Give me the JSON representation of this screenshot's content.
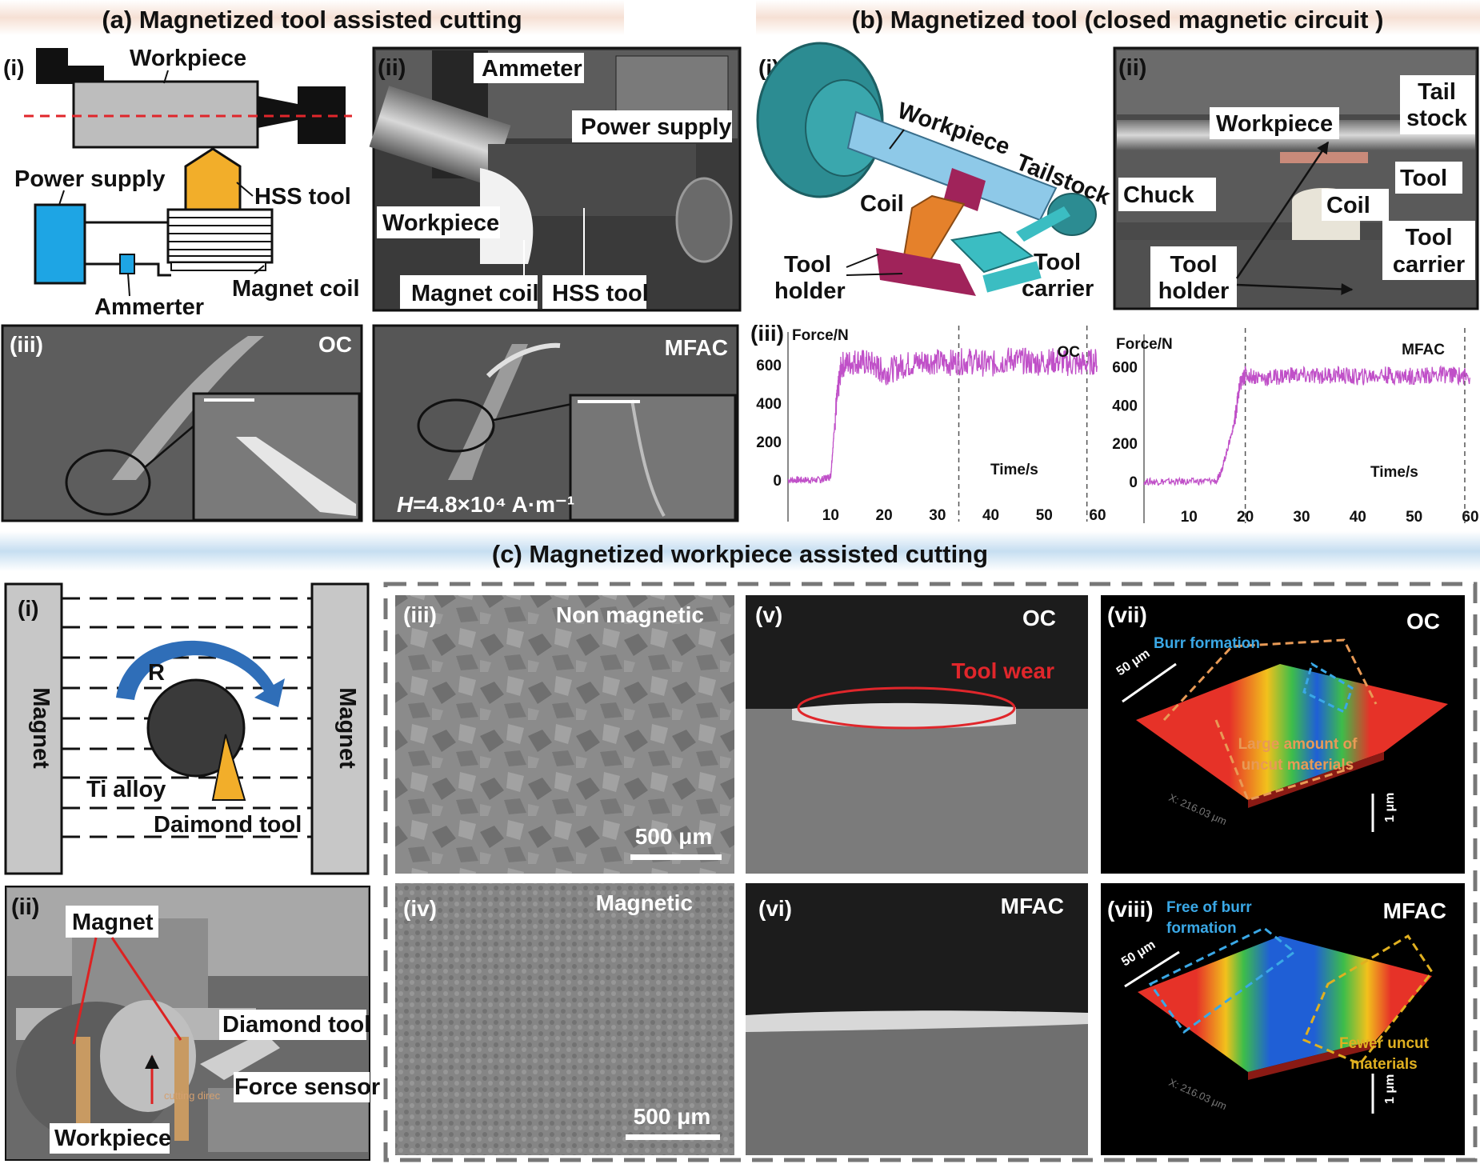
{
  "colors": {
    "band_a": "#f6e4dc",
    "band_c": "#cfe3f3",
    "pink_trace": "#c050c8",
    "hss_tool": "#f2ae2a",
    "power_supply": "#1ea5e4",
    "workpiece_gray": "#bdbdbd",
    "dashed_red": "#e0262b",
    "workpiece_blue": "#8ec9e8",
    "coil_orange": "#e5812b",
    "holder_magenta": "#a0235a",
    "carrier_teal": "#3bbdc2",
    "chuck_teal": "#2c8c92"
  },
  "panel_a": {
    "title": "(a) Magnetized tool assisted cutting",
    "i": {
      "tag": "(i)",
      "workpiece": "Workpiece",
      "power_supply": "Power supply",
      "hss_tool": "HSS tool",
      "magnet_coil": "Magnet coil",
      "ammeter": "Ammerter"
    },
    "ii": {
      "tag": "(ii)",
      "ammeter": "Ammeter",
      "power_supply": "Power supply",
      "workpiece": "Workpiece",
      "magnet_coil": "Magnet coil",
      "hss_tool": "HSS tool"
    },
    "iii": {
      "tag": "(iii)",
      "oc": "OC",
      "mfac": "MFAC",
      "field_h": "H",
      "field_value": "=4.8×10⁴ A·m⁻¹"
    }
  },
  "panel_b": {
    "title": "(b) Magnetized tool (closed magnetic circuit )",
    "i": {
      "tag": "(i)",
      "workpiece": "Workpiece",
      "tailstock": "Tailstock",
      "coil": "Coil",
      "tool_holder_1": "Tool",
      "tool_holder_2": "holder",
      "tool_carrier_1": "Tool",
      "tool_carrier_2": "carrier"
    },
    "ii": {
      "tag": "(ii)",
      "workpiece": "Workpiece",
      "tail_stock_1": "Tail",
      "tail_stock_2": "stock",
      "chuck": "Chuck",
      "coil": "Coil",
      "tool": "Tool",
      "tool_carrier_1": "Tool",
      "tool_carrier_2": "carrier",
      "tool_holder_1": "Tool",
      "tool_holder_2": "holder"
    },
    "iii": {
      "tag": "(iii)"
    }
  },
  "panel_c": {
    "title": "(c) Magnetized workpiece assisted cutting",
    "i": {
      "tag": "(i)",
      "magnet_left": "Magnet",
      "magnet_right": "Magnet",
      "rotation": "R",
      "ti_alloy": "Ti alloy",
      "diamond_tool": "Daimond tool"
    },
    "ii": {
      "tag": "(ii)",
      "magnet": "Magnet",
      "diamond_tool": "Diamond tool",
      "force_sensor": "Force sensor",
      "workpiece": "Workpiece",
      "direction": "cutting direc"
    },
    "iii": {
      "tag": "(iii)",
      "label": "Non magnetic",
      "scale": "500 μm"
    },
    "iv": {
      "tag": "(iv)",
      "label": "Magnetic",
      "scale": "500 μm"
    },
    "v": {
      "tag": "(v)",
      "label": "OC",
      "tool_wear": "Tool wear"
    },
    "vi": {
      "tag": "(vi)",
      "label": "MFAC"
    },
    "vii": {
      "tag": "(vii)",
      "label": "OC",
      "burr": "Burr formation",
      "uncut_1": "Large amount of",
      "uncut_2": "uncut materials",
      "scale_xy": "50 μm",
      "scale_z": "1 μm",
      "x_axis": "X: 216.03 μm"
    },
    "viii": {
      "tag": "(viii)",
      "label": "MFAC",
      "free_1": "Free of burr",
      "free_2": "formation",
      "fewer_1": "Fewer uncut",
      "fewer_2": "materials",
      "scale_xy": "50 μm",
      "scale_z": "1 μm",
      "x_axis": "X: 216.03 μm"
    }
  },
  "chart_data": [
    {
      "type": "line",
      "title": "OC",
      "ylabel": "Force/N",
      "xlabel": "Time/s",
      "xlim": [
        2,
        60
      ],
      "ylim": [
        -50,
        770
      ],
      "xticks": [
        10,
        20,
        30,
        40,
        50,
        60
      ],
      "yticks": [
        0,
        200,
        400,
        600
      ],
      "vlines": [
        34,
        58
      ],
      "series": [
        {
          "x": [
            2,
            5,
            8,
            10,
            11,
            12,
            15,
            18,
            20,
            24,
            28,
            32,
            36,
            40,
            44,
            48,
            52,
            56,
            60
          ],
          "values": [
            0,
            0,
            0,
            20,
            380,
            600,
            620,
            600,
            560,
            600,
            620,
            610,
            620,
            600,
            630,
            610,
            620,
            600,
            620
          ]
        }
      ]
    },
    {
      "type": "line",
      "title": "MFAC",
      "ylabel": "Force/N",
      "xlabel": "Time/s",
      "xlim": [
        2,
        60
      ],
      "ylim": [
        -50,
        770
      ],
      "xticks": [
        10,
        20,
        30,
        40,
        50,
        60
      ],
      "yticks": [
        0,
        200,
        400,
        600
      ],
      "vlines": [
        20,
        59
      ],
      "series": [
        {
          "x": [
            2,
            6,
            10,
            15,
            16,
            18,
            19,
            20,
            24,
            28,
            32,
            36,
            40,
            44,
            48,
            52,
            56,
            60
          ],
          "values": [
            0,
            0,
            0,
            5,
            80,
            300,
            500,
            560,
            540,
            560,
            550,
            560,
            545,
            560,
            550,
            555,
            560,
            550
          ]
        }
      ]
    }
  ]
}
